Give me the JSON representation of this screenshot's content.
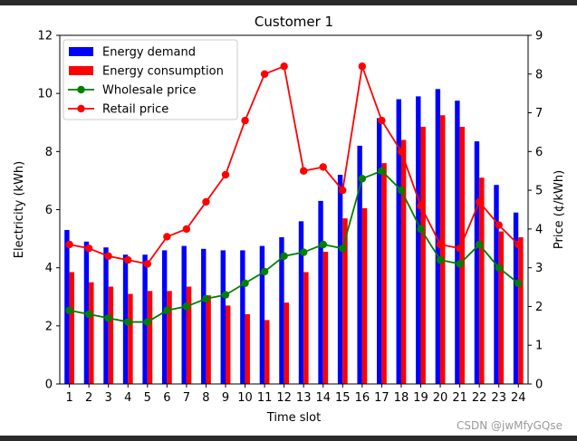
{
  "chart_data": {
    "type": "bar",
    "title": "Customer 1",
    "xlabel": "Time slot",
    "ylabel_left": "Electricity (kWh)",
    "ylabel_right": "Price (¢/kWh)",
    "categories": [
      "1",
      "2",
      "3",
      "4",
      "5",
      "6",
      "7",
      "8",
      "9",
      "10",
      "11",
      "12",
      "13",
      "14",
      "15",
      "16",
      "17",
      "18",
      "19",
      "20",
      "21",
      "22",
      "23",
      "24"
    ],
    "ylim_left": [
      0,
      12
    ],
    "yticks_left": [
      0,
      2,
      4,
      6,
      8,
      10,
      12
    ],
    "ylim_right": [
      0,
      9
    ],
    "yticks_right": [
      0,
      1,
      2,
      3,
      4,
      5,
      6,
      7,
      8,
      9
    ],
    "grid": false,
    "legend_position": "top-left",
    "series": [
      {
        "name": "Energy demand",
        "kind": "bar",
        "axis": "left",
        "color": "#0000ff",
        "values": [
          5.3,
          4.9,
          4.7,
          4.45,
          4.45,
          4.6,
          4.75,
          4.65,
          4.6,
          4.6,
          4.75,
          5.05,
          5.6,
          6.3,
          7.2,
          8.2,
          9.15,
          9.8,
          9.9,
          10.15,
          9.75,
          8.35,
          6.85,
          5.9
        ]
      },
      {
        "name": "Energy consumption",
        "kind": "bar",
        "axis": "left",
        "color": "#ff0000",
        "values": [
          3.85,
          3.5,
          3.35,
          3.1,
          3.2,
          3.2,
          3.35,
          3.05,
          2.7,
          2.4,
          2.2,
          2.8,
          3.85,
          4.55,
          5.7,
          6.05,
          7.6,
          8.4,
          8.85,
          9.25,
          8.85,
          7.1,
          5.25,
          5.05
        ]
      },
      {
        "name": "Wholesale price",
        "kind": "line",
        "axis": "right",
        "color": "#008000",
        "values": [
          1.9,
          1.8,
          1.7,
          1.6,
          1.6,
          1.9,
          2.0,
          2.2,
          2.3,
          2.6,
          2.9,
          3.3,
          3.4,
          3.6,
          3.5,
          5.3,
          5.5,
          5.0,
          4.0,
          3.2,
          3.1,
          3.6,
          3.0,
          2.6
        ]
      },
      {
        "name": "Retail price",
        "kind": "line",
        "axis": "right",
        "color": "#ff0000",
        "values": [
          3.6,
          3.5,
          3.3,
          3.2,
          3.1,
          3.8,
          4.0,
          4.7,
          5.4,
          6.8,
          8.0,
          8.2,
          5.5,
          5.6,
          5.0,
          8.2,
          6.8,
          6.0,
          4.6,
          3.6,
          3.5,
          4.7,
          4.1,
          3.6
        ]
      }
    ]
  },
  "watermark": "CSDN @jwMfyGQse"
}
